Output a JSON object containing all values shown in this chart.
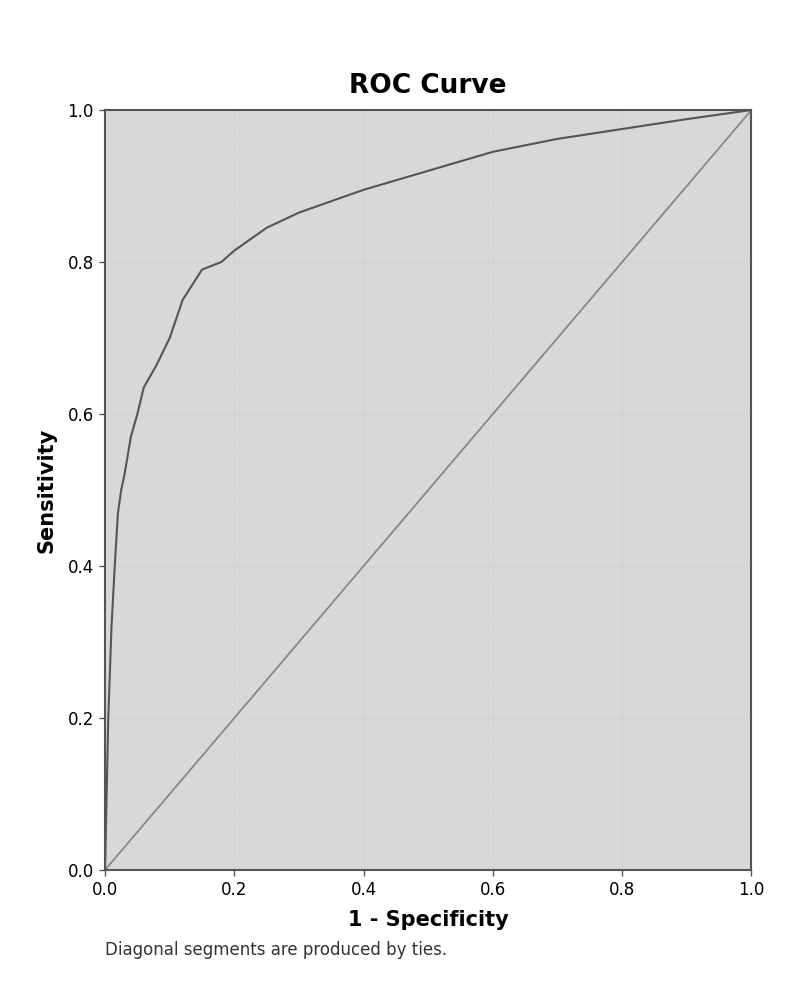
{
  "title": "ROC Curve",
  "xlabel": "1 - Specificity",
  "ylabel": "Sensitivity",
  "footnote": "Diagonal segments are produced by ties.",
  "title_fontsize": 19,
  "label_fontsize": 15,
  "footnote_fontsize": 12,
  "tick_fontsize": 12,
  "xlim": [
    0.0,
    1.0
  ],
  "ylim": [
    0.0,
    1.0
  ],
  "xticks": [
    0.0,
    0.2,
    0.4,
    0.6,
    0.8,
    1.0
  ],
  "yticks": [
    0.0,
    0.2,
    0.4,
    0.6,
    0.8,
    1.0
  ],
  "plot_bg_color": "#d8d8d8",
  "line_color": "#555555",
  "diagonal_color": "#888888",
  "roc_x": [
    0.0,
    0.005,
    0.01,
    0.015,
    0.02,
    0.025,
    0.03,
    0.04,
    0.05,
    0.06,
    0.07,
    0.08,
    0.1,
    0.12,
    0.15,
    0.18,
    0.2,
    0.25,
    0.3,
    0.4,
    0.5,
    0.6,
    0.7,
    0.8,
    0.9,
    1.0
  ],
  "roc_y": [
    0.0,
    0.2,
    0.32,
    0.4,
    0.47,
    0.5,
    0.52,
    0.57,
    0.6,
    0.635,
    0.65,
    0.665,
    0.7,
    0.75,
    0.79,
    0.8,
    0.815,
    0.845,
    0.865,
    0.895,
    0.92,
    0.945,
    0.962,
    0.975,
    0.988,
    1.0
  ]
}
